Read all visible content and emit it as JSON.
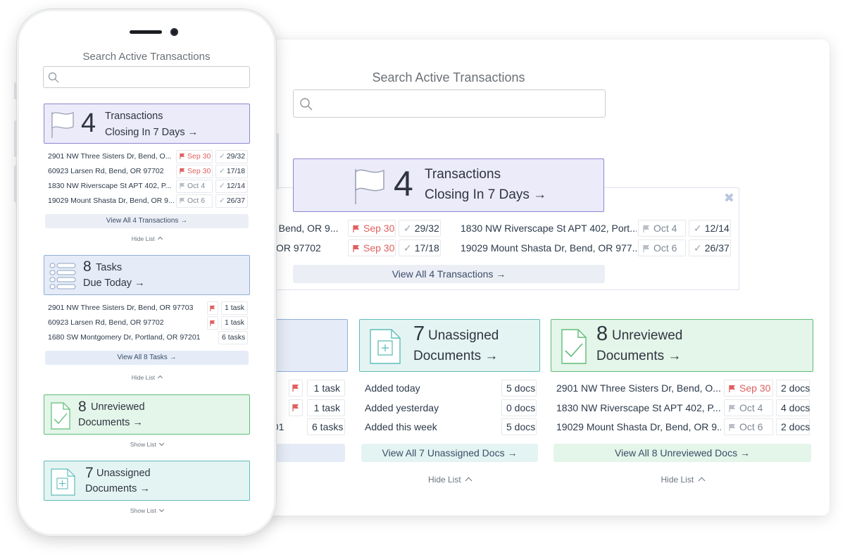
{
  "desktop": {
    "search_label": "Search Active Transactions",
    "transactions": {
      "count": "4",
      "line1": "Transactions",
      "line2": "Closing In 7 Days →",
      "rows_left": [
        {
          "address": "2901 NW Three Sisters Dr, Bend, OR 9...",
          "visible": "r, Bend, OR 9...",
          "date": "Sep 30",
          "progress": "29/32"
        },
        {
          "address": "60923 Larsen Rd, Bend, OR 97702",
          "visible": "OR 97702",
          "date": "Sep 30",
          "progress": "17/18"
        }
      ],
      "rows_right": [
        {
          "address": "1830 NW Riverscape St APT 402, Port...",
          "date": "Oct 4",
          "progress": "12/14"
        },
        {
          "address": "19029 Mount Shasta Dr, Bend, OR 977...",
          "date": "Oct 6",
          "progress": "26/37"
        }
      ],
      "view_all": "View All 4 Transactions →"
    },
    "tasks": {
      "rows": [
        {
          "visible": "3",
          "count": "1 task"
        },
        {
          "visible": "",
          "count": "1 task"
        },
        {
          "visible": "201",
          "count": "6 tasks"
        }
      ]
    },
    "unassigned": {
      "count": "7",
      "line1": "Unassigned",
      "line2": "Documents →",
      "rows": [
        {
          "label": "Added today",
          "count": "5 docs"
        },
        {
          "label": "Added yesterday",
          "count": "0 docs"
        },
        {
          "label": "Added this week",
          "count": "5 docs"
        }
      ],
      "view_all": "View All 7 Unassigned Docs →",
      "hide": "Hide List"
    },
    "unreviewed": {
      "count": "8",
      "line1": "Unreviewed",
      "line2": "Documents →",
      "rows": [
        {
          "address": "2901 NW Three Sisters Dr, Bend, O...",
          "date": "Sep 30",
          "count": "2 docs"
        },
        {
          "address": "1830 NW Riverscape St APT 402, P...",
          "date": "Oct 4",
          "count": "4 docs"
        },
        {
          "address": "19029 Mount Shasta Dr, Bend, OR 9...",
          "date": "Oct 6",
          "count": "2 docs"
        }
      ],
      "view_all": "View All 8 Unreviewed Docs →",
      "hide": "Hide List"
    }
  },
  "phone": {
    "search_label": "Search Active Transactions",
    "transactions": {
      "count": "4",
      "line1": "Transactions",
      "line2": "Closing In 7 Days →",
      "rows": [
        {
          "address": "2901 NW Three Sisters Dr, Bend, O...",
          "date": "Sep 30",
          "progress": "29/32"
        },
        {
          "address": "60923 Larsen Rd, Bend, OR 97702",
          "date": "Sep 30",
          "progress": "17/18"
        },
        {
          "address": "1830 NW Riverscape St APT 402, P...",
          "date": "Oct 4",
          "progress": "12/14"
        },
        {
          "address": "19029 Mount Shasta Dr, Bend, OR 9...",
          "date": "Oct 6",
          "progress": "26/37"
        }
      ],
      "view_all": "View All 4 Transactions →",
      "hide": "Hide List"
    },
    "tasks": {
      "count": "8",
      "line1": "Tasks",
      "line2": "Due Today →",
      "rows": [
        {
          "address": "2901 NW Three Sisters Dr, Bend, OR 97703",
          "count": "1 task"
        },
        {
          "address": "60923 Larsen Rd, Bend, OR 97702",
          "count": "1 task"
        },
        {
          "address": "1680 SW Montgomery Dr, Portland, OR 97201",
          "count": "6 tasks"
        }
      ],
      "view_all": "View All 8 Tasks →",
      "hide": "Hide List"
    },
    "unreviewed": {
      "count": "8",
      "line1": "Unreviewed",
      "line2": "Documents →",
      "show": "Show List"
    },
    "unassigned": {
      "count": "7",
      "line1": "Unassigned",
      "line2": "Documents →",
      "show": "Show List"
    }
  },
  "colors": {
    "accent_lavender": "#ecebfa",
    "accent_teal": "#e4f4f3",
    "accent_green": "#e4f5e9",
    "accent_blue": "#e5ecf7",
    "flag_red": "#e06060"
  },
  "icons": [
    "search-icon",
    "flag-icon",
    "list-icon",
    "document-add-icon",
    "document-check-icon",
    "check-icon",
    "close-icon",
    "chevron-up-icon",
    "chevron-down-icon"
  ]
}
